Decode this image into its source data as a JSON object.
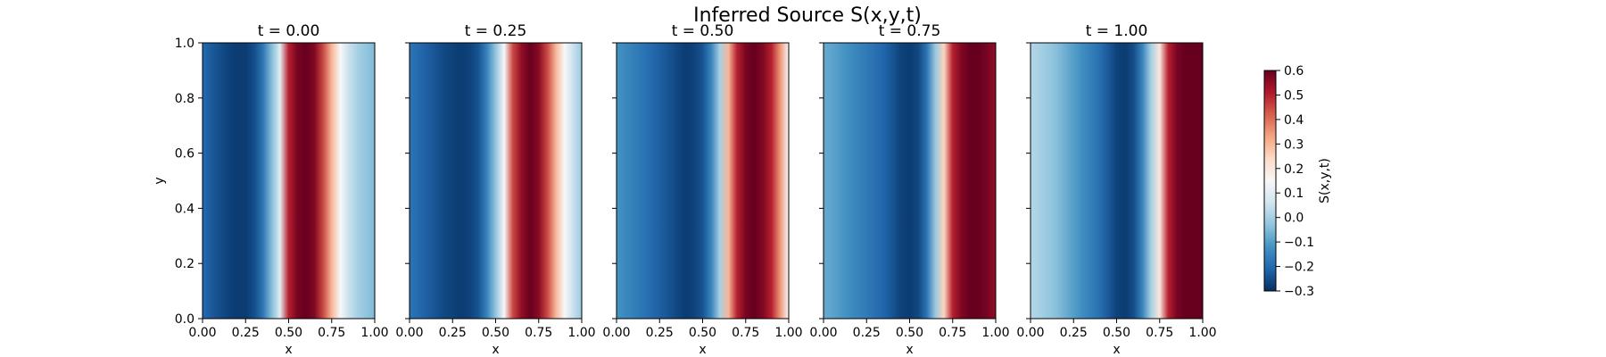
{
  "chart_data": {
    "type": "heatmap",
    "title": "Inferred Source S(x,y,t)",
    "xlabel": "x",
    "ylabel": "y",
    "xlim": [
      0.0,
      1.0
    ],
    "ylim": [
      0.0,
      1.0
    ],
    "x_ticks": [
      "0.00",
      "0.25",
      "0.50",
      "0.75",
      "1.00"
    ],
    "y_ticks": [
      "0.0",
      "0.2",
      "0.4",
      "0.6",
      "0.8",
      "1.0"
    ],
    "colormap": "RdBu_r",
    "colorbar": {
      "label": "S(x,y,t)",
      "range": [
        -0.3,
        0.6
      ],
      "ticks": [
        "−0.3",
        "−0.2",
        "−0.1",
        "0.0",
        "0.1",
        "0.2",
        "0.3",
        "0.4",
        "0.5",
        "0.6"
      ]
    },
    "x_samples": [
      0.0,
      0.05,
      0.1,
      0.15,
      0.2,
      0.25,
      0.3,
      0.35,
      0.4,
      0.45,
      0.5,
      0.55,
      0.6,
      0.65,
      0.7,
      0.75,
      0.8,
      0.85,
      0.9,
      0.95,
      1.0
    ],
    "panels": [
      {
        "title": "t = 0.00",
        "values": [
          -0.2,
          -0.23,
          -0.25,
          -0.27,
          -0.28,
          -0.28,
          -0.25,
          -0.18,
          -0.05,
          0.1,
          0.5,
          0.58,
          0.6,
          0.57,
          0.45,
          0.3,
          0.15,
          0.05,
          0.0,
          -0.03,
          -0.05
        ]
      },
      {
        "title": "t = 0.25",
        "values": [
          -0.18,
          -0.2,
          -0.22,
          -0.24,
          -0.26,
          -0.27,
          -0.28,
          -0.27,
          -0.24,
          -0.15,
          -0.03,
          0.15,
          0.45,
          0.55,
          0.6,
          0.56,
          0.45,
          0.3,
          0.15,
          0.05,
          -0.02
        ]
      },
      {
        "title": "t = 0.50",
        "values": [
          -0.12,
          -0.14,
          -0.16,
          -0.18,
          -0.2,
          -0.22,
          -0.24,
          -0.26,
          -0.28,
          -0.27,
          -0.24,
          -0.15,
          0.0,
          0.3,
          0.5,
          0.58,
          0.6,
          0.57,
          0.5,
          0.35,
          0.15
        ]
      },
      {
        "title": "t = 0.75",
        "values": [
          -0.08,
          -0.09,
          -0.11,
          -0.13,
          -0.15,
          -0.17,
          -0.19,
          -0.21,
          -0.24,
          -0.27,
          -0.28,
          -0.26,
          -0.18,
          -0.02,
          0.25,
          0.5,
          0.57,
          0.6,
          0.6,
          0.58,
          0.55
        ]
      },
      {
        "title": "t = 1.00",
        "values": [
          0.02,
          0.0,
          -0.02,
          -0.04,
          -0.07,
          -0.1,
          -0.13,
          -0.16,
          -0.19,
          -0.23,
          -0.27,
          -0.28,
          -0.25,
          -0.15,
          0.0,
          0.2,
          0.5,
          0.58,
          0.6,
          0.6,
          0.6
        ]
      }
    ]
  }
}
